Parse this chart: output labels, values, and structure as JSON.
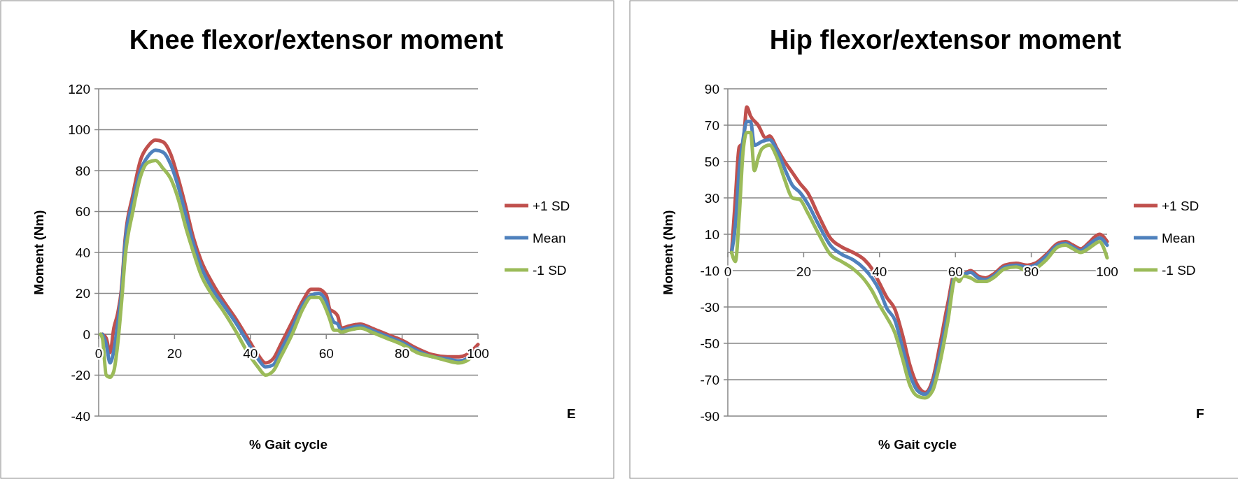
{
  "chart_data": [
    {
      "type": "line",
      "title": "Knee flexor/extensor moment",
      "xlabel": "% Gait cycle",
      "ylabel": "Moment (Nm)",
      "xlim": [
        0,
        100
      ],
      "xticks": [
        0,
        20,
        40,
        60,
        80,
        100
      ],
      "ylim": [
        -40,
        120
      ],
      "yticks": [
        -40,
        -20,
        0,
        20,
        40,
        60,
        80,
        100,
        120
      ],
      "grid": "y",
      "legend": "right",
      "marker": "none",
      "annotations": [
        "E"
      ],
      "series": [
        {
          "name": "+1 SD",
          "color": "#c0504d",
          "x": [
            1,
            2,
            3,
            4,
            5,
            6,
            7,
            9,
            11,
            13,
            15,
            17,
            19,
            21,
            23,
            25,
            27,
            30,
            33,
            36,
            39,
            42,
            44,
            46,
            48,
            51,
            54,
            56,
            58,
            60,
            61,
            62,
            63,
            64,
            66,
            69,
            72,
            76,
            80,
            84,
            88,
            92,
            95,
            97,
            100
          ],
          "values": [
            0,
            -2,
            -9,
            3,
            10,
            22,
            47,
            68,
            85,
            92,
            95,
            94,
            88,
            76,
            62,
            47,
            36,
            25,
            16,
            8,
            -1,
            -10,
            -14,
            -12,
            -5,
            6,
            17,
            22,
            22,
            19,
            12,
            11,
            9,
            3,
            4,
            5,
            3,
            0,
            -3,
            -7,
            -10,
            -11,
            -11,
            -10,
            -5
          ]
        },
        {
          "name": "Mean",
          "color": "#4f81bd",
          "x": [
            1,
            2,
            3,
            4,
            5,
            6,
            7,
            9,
            11,
            13,
            15,
            17,
            19,
            21,
            23,
            25,
            27,
            30,
            33,
            36,
            39,
            42,
            44,
            46,
            48,
            51,
            54,
            56,
            58,
            60,
            61,
            62,
            63,
            64,
            66,
            69,
            72,
            76,
            80,
            84,
            88,
            92,
            95,
            97,
            100
          ],
          "values": [
            0,
            -5,
            -14,
            -8,
            5,
            20,
            45,
            65,
            80,
            87,
            90,
            89,
            83,
            72,
            58,
            44,
            33,
            22,
            14,
            6,
            -3,
            -12,
            -16,
            -15,
            -8,
            3,
            15,
            19,
            20,
            16,
            10,
            6,
            5,
            2,
            3,
            4,
            2,
            -1,
            -4,
            -8,
            -11,
            -12,
            -13,
            -12,
            -7
          ]
        },
        {
          "name": "-1 SD",
          "color": "#9bbb59",
          "x": [
            0.5,
            1,
            2,
            3,
            4,
            5,
            6,
            7,
            9,
            11,
            13,
            15,
            17,
            19,
            21,
            23,
            25,
            27,
            30,
            33,
            36,
            39,
            42,
            44,
            46,
            48,
            51,
            54,
            56,
            58,
            60,
            61,
            62,
            63,
            64,
            66,
            69,
            72,
            76,
            80,
            84,
            88,
            92,
            95,
            97,
            100
          ],
          "values": [
            0,
            -2,
            -20,
            -21,
            -18,
            -5,
            15,
            38,
            60,
            77,
            84,
            85,
            81,
            76,
            66,
            52,
            40,
            29,
            19,
            11,
            2,
            -8,
            -16,
            -20,
            -18,
            -11,
            0,
            13,
            18,
            18,
            12,
            7,
            2,
            2,
            1,
            2,
            3,
            1,
            -2,
            -5,
            -9,
            -11,
            -13,
            -14,
            -13,
            -8
          ]
        }
      ]
    },
    {
      "type": "line",
      "title": "Hip flexor/extensor moment",
      "xlabel": "% Gait cycle",
      "ylabel": "Moment (Nm)",
      "xlim": [
        0,
        100
      ],
      "xticks": [
        0,
        20,
        40,
        60,
        80,
        100
      ],
      "ylim": [
        -90,
        90
      ],
      "yticks": [
        -90,
        -70,
        -50,
        -30,
        -10,
        10,
        30,
        50,
        70,
        90
      ],
      "grid": "y",
      "legend": "right",
      "marker": "none",
      "annotations": [
        "F"
      ],
      "series": [
        {
          "name": "+1 SD",
          "color": "#c0504d",
          "x": [
            1,
            2,
            3,
            4,
            5,
            6,
            8,
            10,
            11,
            13,
            15,
            17,
            19,
            21,
            24,
            27,
            30,
            33,
            36,
            38,
            40,
            42,
            44,
            46,
            48,
            50,
            52,
            54,
            56,
            58,
            60,
            62,
            64,
            66,
            68,
            70,
            73,
            76,
            79,
            81,
            84,
            87,
            89,
            91,
            93,
            95,
            97,
            98,
            100
          ],
          "values": [
            0,
            30,
            58,
            60,
            80,
            75,
            70,
            63,
            64,
            57,
            50,
            44,
            38,
            33,
            20,
            8,
            3,
            0,
            -4,
            -9,
            -17,
            -25,
            -31,
            -45,
            -62,
            -73,
            -77,
            -70,
            -50,
            -28,
            -10,
            -12,
            -10,
            -13,
            -14,
            -12,
            -7,
            -6,
            -7,
            -6,
            -1,
            5,
            6,
            4,
            2,
            5,
            9,
            10,
            6
          ]
        },
        {
          "name": "Mean",
          "color": "#4f81bd",
          "x": [
            1,
            2,
            3,
            4,
            5,
            6,
            7,
            9,
            11,
            13,
            15,
            17,
            19,
            21,
            24,
            27,
            30,
            33,
            36,
            38,
            40,
            42,
            44,
            46,
            48,
            50,
            52,
            54,
            56,
            58,
            60,
            62,
            64,
            66,
            68,
            70,
            73,
            76,
            79,
            81,
            84,
            87,
            89,
            91,
            93,
            95,
            97,
            98,
            100
          ],
          "values": [
            0,
            15,
            45,
            62,
            72,
            72,
            59,
            61,
            62,
            56,
            46,
            37,
            33,
            27,
            15,
            4,
            -1,
            -4,
            -9,
            -14,
            -21,
            -31,
            -37,
            -52,
            -67,
            -76,
            -78,
            -72,
            -55,
            -33,
            -12,
            -12,
            -11,
            -14,
            -15,
            -13,
            -8,
            -7,
            -8,
            -7,
            -2,
            4,
            5,
            3,
            1,
            4,
            7,
            8,
            4
          ]
        },
        {
          "name": "-1 SD",
          "color": "#9bbb59",
          "x": [
            1,
            2,
            3,
            4,
            5,
            6,
            7,
            8,
            9,
            11,
            13,
            15,
            17,
            19,
            21,
            24,
            27,
            30,
            33,
            36,
            38,
            40,
            42,
            44,
            46,
            48,
            50,
            52,
            54,
            56,
            58,
            60,
            61,
            62,
            64,
            66,
            68,
            70,
            73,
            76,
            79,
            81,
            84,
            87,
            89,
            91,
            93,
            95,
            97,
            98,
            99,
            100
          ],
          "values": [
            0,
            -5,
            20,
            55,
            66,
            66,
            45,
            52,
            57,
            59,
            52,
            40,
            30,
            29,
            22,
            10,
            -1,
            -5,
            -9,
            -15,
            -21,
            -29,
            -36,
            -44,
            -58,
            -73,
            -79,
            -80,
            -76,
            -60,
            -38,
            -14,
            -16,
            -13,
            -14,
            -16,
            -16,
            -14,
            -9,
            -8,
            -10,
            -9,
            -4,
            3,
            4,
            2,
            0,
            2,
            5,
            6,
            3,
            -3
          ]
        }
      ]
    }
  ]
}
